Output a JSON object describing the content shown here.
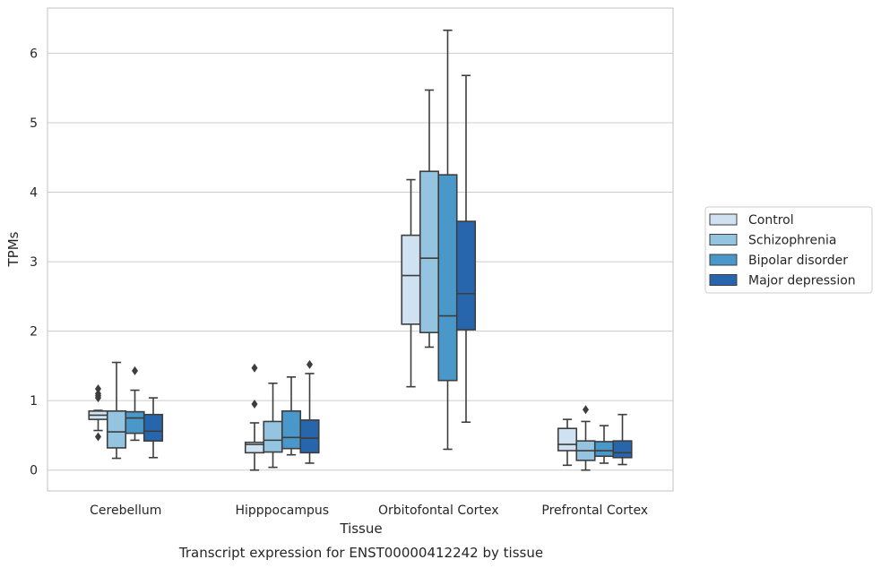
{
  "chart_data": {
    "type": "box",
    "title": "Transcript expression for ENST00000412242 by tissue",
    "xlabel": "Tissue",
    "ylabel": "TPMs",
    "ylim": [
      -0.3,
      6.65
    ],
    "yticks": [
      "0",
      "1",
      "2",
      "3",
      "4",
      "5",
      "6"
    ],
    "grid": "horizontal",
    "legend_position": "right",
    "categories": [
      "Cerebellum",
      "Hipppocampus",
      "Orbitofontal Cortex",
      "Prefrontal Cortex"
    ],
    "series": [
      {
        "name": "Control",
        "color": "#d0e1f2",
        "boxes": [
          {
            "whislo": 0.57,
            "q1": 0.73,
            "med": 0.79,
            "q3": 0.85,
            "whishi": 0.86,
            "fliers": [
              0.48,
              1.04,
              1.07,
              1.1,
              1.17
            ]
          },
          {
            "whislo": 0.0,
            "q1": 0.25,
            "med": 0.37,
            "q3": 0.4,
            "whishi": 0.68,
            "fliers": [
              0.95,
              1.47
            ]
          },
          {
            "whislo": 1.2,
            "q1": 2.1,
            "med": 2.8,
            "q3": 3.38,
            "whishi": 4.18,
            "fliers": []
          },
          {
            "whislo": 0.07,
            "q1": 0.28,
            "med": 0.37,
            "q3": 0.6,
            "whishi": 0.73,
            "fliers": []
          }
        ]
      },
      {
        "name": "Schizophrenia",
        "color": "#94c4df",
        "boxes": [
          {
            "whislo": 0.17,
            "q1": 0.32,
            "med": 0.55,
            "q3": 0.85,
            "whishi": 1.55,
            "fliers": []
          },
          {
            "whislo": 0.04,
            "q1": 0.26,
            "med": 0.43,
            "q3": 0.7,
            "whishi": 1.25,
            "fliers": []
          },
          {
            "whislo": 1.77,
            "q1": 1.98,
            "med": 3.05,
            "q3": 4.3,
            "whishi": 5.47,
            "fliers": []
          },
          {
            "whislo": 0.0,
            "q1": 0.14,
            "med": 0.28,
            "q3": 0.42,
            "whishi": 0.7,
            "fliers": [
              0.87
            ]
          }
        ]
      },
      {
        "name": "Bipolar disorder",
        "color": "#4a98c9",
        "boxes": [
          {
            "whislo": 0.43,
            "q1": 0.53,
            "med": 0.75,
            "q3": 0.84,
            "whishi": 1.15,
            "fliers": [
              1.43
            ]
          },
          {
            "whislo": 0.22,
            "q1": 0.31,
            "med": 0.47,
            "q3": 0.85,
            "whishi": 1.34,
            "fliers": []
          },
          {
            "whislo": 0.3,
            "q1": 1.29,
            "med": 2.22,
            "q3": 4.25,
            "whishi": 6.33,
            "fliers": []
          },
          {
            "whislo": 0.1,
            "q1": 0.2,
            "med": 0.28,
            "q3": 0.41,
            "whishi": 0.64,
            "fliers": []
          }
        ]
      },
      {
        "name": "Major depression",
        "color": "#2766ac",
        "boxes": [
          {
            "whislo": 0.18,
            "q1": 0.42,
            "med": 0.56,
            "q3": 0.8,
            "whishi": 1.04,
            "fliers": []
          },
          {
            "whislo": 0.1,
            "q1": 0.25,
            "med": 0.46,
            "q3": 0.72,
            "whishi": 1.39,
            "fliers": [
              1.52
            ]
          },
          {
            "whislo": 0.69,
            "q1": 2.02,
            "med": 2.54,
            "q3": 3.58,
            "whishi": 5.68,
            "fliers": []
          },
          {
            "whislo": 0.08,
            "q1": 0.18,
            "med": 0.25,
            "q3": 0.42,
            "whishi": 0.8,
            "fliers": []
          }
        ]
      }
    ]
  }
}
